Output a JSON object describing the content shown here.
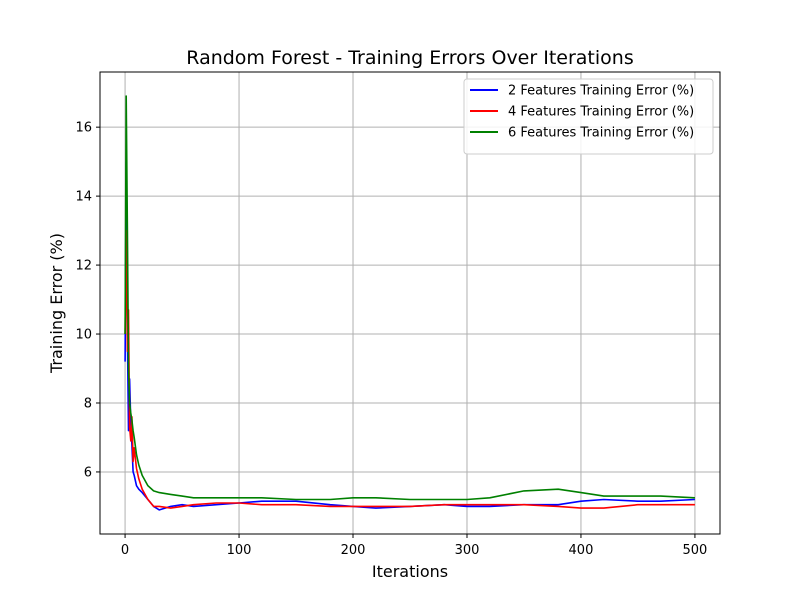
{
  "chart_data": {
    "type": "line",
    "title": "Random Forest - Training Errors Over Iterations",
    "xlabel": "Iterations",
    "ylabel": "Training Error (%)",
    "xlim": [
      -22,
      522
    ],
    "ylim": [
      4.2,
      17.6
    ],
    "x_ticks": [
      0,
      100,
      200,
      300,
      400,
      500
    ],
    "y_ticks": [
      6,
      8,
      10,
      12,
      14,
      16
    ],
    "grid": true,
    "legend_position": "top-right",
    "series": [
      {
        "name": "2 Features Training Error (%)",
        "color": "#0000ff",
        "x": [
          0,
          1,
          2,
          3,
          4,
          5,
          6,
          7,
          8,
          10,
          12,
          15,
          20,
          25,
          30,
          40,
          50,
          60,
          80,
          100,
          120,
          150,
          180,
          200,
          220,
          250,
          280,
          300,
          320,
          350,
          380,
          400,
          420,
          450,
          470,
          500
        ],
        "y": [
          9.2,
          15.0,
          10.0,
          7.2,
          8.7,
          7.4,
          6.8,
          6.0,
          5.9,
          5.6,
          5.5,
          5.4,
          5.2,
          5.0,
          4.9,
          5.0,
          5.05,
          5.0,
          5.05,
          5.1,
          5.15,
          5.15,
          5.05,
          5.0,
          4.95,
          5.0,
          5.05,
          5.0,
          5.0,
          5.05,
          5.05,
          5.15,
          5.2,
          5.15,
          5.15,
          5.2
        ]
      },
      {
        "name": "4 Features Training Error (%)",
        "color": "#ff0000",
        "x": [
          0,
          1,
          2,
          3,
          4,
          5,
          6,
          7,
          8,
          10,
          12,
          15,
          20,
          25,
          30,
          40,
          50,
          60,
          80,
          100,
          120,
          150,
          180,
          200,
          220,
          250,
          280,
          300,
          320,
          350,
          380,
          400,
          420,
          450,
          470,
          500
        ],
        "y": [
          10.0,
          13.0,
          9.5,
          10.7,
          7.3,
          6.9,
          7.6,
          6.3,
          6.7,
          6.1,
          5.8,
          5.5,
          5.2,
          5.0,
          5.0,
          4.95,
          5.0,
          5.05,
          5.1,
          5.1,
          5.05,
          5.05,
          5.0,
          5.0,
          5.0,
          5.0,
          5.05,
          5.05,
          5.05,
          5.05,
          5.0,
          4.95,
          4.95,
          5.05,
          5.05,
          5.05
        ]
      },
      {
        "name": "6 Features Training Error (%)",
        "color": "#008000",
        "x": [
          0,
          1,
          2,
          3,
          4,
          5,
          6,
          7,
          8,
          10,
          12,
          15,
          20,
          25,
          30,
          40,
          50,
          60,
          80,
          100,
          120,
          150,
          180,
          200,
          220,
          250,
          280,
          300,
          320,
          350,
          380,
          400,
          420,
          450,
          470,
          500
        ],
        "y": [
          10.0,
          16.9,
          13.0,
          9.0,
          8.0,
          7.7,
          7.5,
          7.2,
          7.0,
          6.5,
          6.2,
          5.9,
          5.6,
          5.45,
          5.4,
          5.35,
          5.3,
          5.25,
          5.25,
          5.25,
          5.25,
          5.2,
          5.2,
          5.25,
          5.25,
          5.2,
          5.2,
          5.2,
          5.25,
          5.45,
          5.5,
          5.4,
          5.3,
          5.3,
          5.3,
          5.25
        ]
      }
    ]
  }
}
